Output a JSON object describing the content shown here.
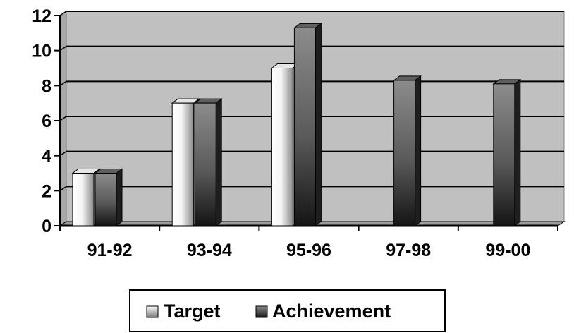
{
  "chart_data": {
    "type": "bar",
    "title": "",
    "xlabel": "",
    "ylabel": "",
    "categories": [
      "91-92",
      "93-94",
      "95-96",
      "97-98",
      "99-00"
    ],
    "series": [
      {
        "name": "Target",
        "values": [
          3,
          7,
          9,
          null,
          null
        ]
      },
      {
        "name": "Achievement",
        "values": [
          3,
          7,
          11.3,
          8.3,
          8.1
        ]
      }
    ],
    "ylim": [
      0,
      12
    ],
    "yticks": [
      "0",
      "2",
      "4",
      "6",
      "8",
      "10",
      "12"
    ],
    "grid": true,
    "legend_position": "bottom-center",
    "style": "3d-shaded",
    "colors": {
      "plot_background": "#c0c0c0",
      "gridline": "#000000",
      "target_light": "#ffffff",
      "target_dark": "#8a8a8a",
      "achievement_light": "#8c8c8c",
      "achievement_dark": "#141414"
    }
  }
}
